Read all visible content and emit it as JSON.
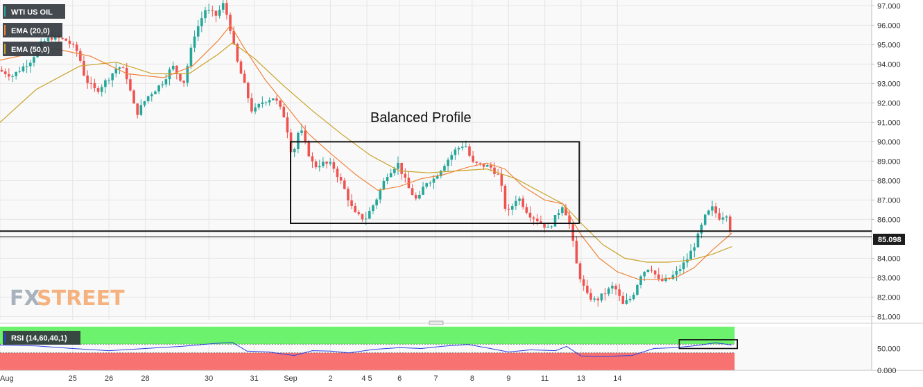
{
  "legend": {
    "instrument": "WTI US OIL",
    "ema20": "EMA (20,0)",
    "ema50": "EMA (50,0)",
    "rsi": "RSI (14,60,40,1)"
  },
  "colors": {
    "candle_up": "#26a69a",
    "candle_down": "#ef5350",
    "ema20": "#f0833a",
    "ema50": "#c9a227",
    "rsi_line": "#2b3fe0",
    "rsi_upper_zone": "#6cf26c",
    "rsi_lower_zone": "#f87272"
  },
  "watermark": {
    "left": "FX",
    "right": "STREET"
  },
  "annotation": {
    "text": "Balanced Profile"
  },
  "price_tag": "85.098",
  "chart_data": {
    "type": "candlestick",
    "y_axis": {
      "ylim": [
        80.8,
        97.3
      ],
      "ticks": [
        "81.000",
        "82.000",
        "83.000",
        "84.000",
        "85.000",
        "86.000",
        "87.000",
        "88.000",
        "89.000",
        "90.000",
        "91.000",
        "92.000",
        "93.000",
        "94.000",
        "95.000",
        "96.000",
        "97.000"
      ]
    },
    "x_axis": {
      "range": [
        0,
        24
      ],
      "ticks": [
        {
          "label": "Aug",
          "pos": 0
        },
        {
          "label": "25",
          "pos": 2
        },
        {
          "label": "26",
          "pos": 3
        },
        {
          "label": "28",
          "pos": 4
        },
        {
          "label": "30",
          "pos": 5.75
        },
        {
          "label": "31",
          "pos": 7
        },
        {
          "label": "Sep",
          "pos": 8
        },
        {
          "label": "2",
          "pos": 9.1
        },
        {
          "label": "4 5",
          "pos": 10.1
        },
        {
          "label": "6",
          "pos": 11
        },
        {
          "label": "7",
          "pos": 12
        },
        {
          "label": "8",
          "pos": 13
        },
        {
          "label": "9",
          "pos": 14
        },
        {
          "label": "11",
          "pos": 15
        },
        {
          "label": "13",
          "pos": 16
        },
        {
          "label": "14",
          "pos": 17
        }
      ]
    },
    "price_path": [
      [
        0,
        93.7
      ],
      [
        0.4,
        93.4
      ],
      [
        0.9,
        94.2
      ],
      [
        1.2,
        95.1
      ],
      [
        1.5,
        95.4
      ],
      [
        1.9,
        95.2
      ],
      [
        2.2,
        94.6
      ],
      [
        2.4,
        93.2
      ],
      [
        2.7,
        92.6
      ],
      [
        3.0,
        93.2
      ],
      [
        3.3,
        93.9
      ],
      [
        3.5,
        93.6
      ],
      [
        3.8,
        91.4
      ],
      [
        4.1,
        92.3
      ],
      [
        4.5,
        93.0
      ],
      [
        4.8,
        93.9
      ],
      [
        5.1,
        93.0
      ],
      [
        5.4,
        95.5
      ],
      [
        5.7,
        96.8
      ],
      [
        6.0,
        96.5
      ],
      [
        6.2,
        97.1
      ],
      [
        6.35,
        96.2
      ],
      [
        6.55,
        94.3
      ],
      [
        6.8,
        92.8
      ],
      [
        7.0,
        91.5
      ],
      [
        7.3,
        92.1
      ],
      [
        7.6,
        92.3
      ],
      [
        7.9,
        91.2
      ],
      [
        8.1,
        89.2
      ],
      [
        8.3,
        90.8
      ],
      [
        8.5,
        89.6
      ],
      [
        8.7,
        88.7
      ],
      [
        8.9,
        88.9
      ],
      [
        9.2,
        88.8
      ],
      [
        9.5,
        87.7
      ],
      [
        9.8,
        86.3
      ],
      [
        10.1,
        86.0
      ],
      [
        10.4,
        87.0
      ],
      [
        10.7,
        88.3
      ],
      [
        11.0,
        88.9
      ],
      [
        11.3,
        87.6
      ],
      [
        11.55,
        86.9
      ],
      [
        11.75,
        87.9
      ],
      [
        12.0,
        88.1
      ],
      [
        12.3,
        88.9
      ],
      [
        12.6,
        89.6
      ],
      [
        12.85,
        89.9
      ],
      [
        13.05,
        88.9
      ],
      [
        13.3,
        88.8
      ],
      [
        13.55,
        88.7
      ],
      [
        13.8,
        88.2
      ],
      [
        14.0,
        86.2
      ],
      [
        14.3,
        87.2
      ],
      [
        14.6,
        86.3
      ],
      [
        14.9,
        85.9
      ],
      [
        15.15,
        85.5
      ],
      [
        15.4,
        86.3
      ],
      [
        15.55,
        86.8
      ],
      [
        15.75,
        85.6
      ],
      [
        15.95,
        83.4
      ],
      [
        16.2,
        82.1
      ],
      [
        16.45,
        81.8
      ],
      [
        16.7,
        82.2
      ],
      [
        16.95,
        82.6
      ],
      [
        17.2,
        81.6
      ],
      [
        17.45,
        82.0
      ],
      [
        17.7,
        83.2
      ],
      [
        17.95,
        83.6
      ],
      [
        18.2,
        82.8
      ],
      [
        18.45,
        82.9
      ],
      [
        18.7,
        83.3
      ],
      [
        18.95,
        83.9
      ],
      [
        19.2,
        84.8
      ],
      [
        19.45,
        86.1
      ],
      [
        19.65,
        86.6
      ],
      [
        19.85,
        86.1
      ],
      [
        20.05,
        86.3
      ],
      [
        20.15,
        85.5
      ]
    ],
    "ema20_path": [
      [
        0,
        94.2
      ],
      [
        1.5,
        94.8
      ],
      [
        2.5,
        94.4
      ],
      [
        3.5,
        93.5
      ],
      [
        4.5,
        93.3
      ],
      [
        5.3,
        93.9
      ],
      [
        6.0,
        95.2
      ],
      [
        6.35,
        96.0
      ],
      [
        6.7,
        94.9
      ],
      [
        7.3,
        93.2
      ],
      [
        7.9,
        91.8
      ],
      [
        8.5,
        90.4
      ],
      [
        9.1,
        89.4
      ],
      [
        9.8,
        88.3
      ],
      [
        10.4,
        87.5
      ],
      [
        11.0,
        87.7
      ],
      [
        11.6,
        88.1
      ],
      [
        12.2,
        88.3
      ],
      [
        12.9,
        88.7
      ],
      [
        13.4,
        88.9
      ],
      [
        13.9,
        88.6
      ],
      [
        14.4,
        87.7
      ],
      [
        15.0,
        87.0
      ],
      [
        15.5,
        86.8
      ],
      [
        16.0,
        85.2
      ],
      [
        16.5,
        84.0
      ],
      [
        17.0,
        83.3
      ],
      [
        17.6,
        82.9
      ],
      [
        18.1,
        82.9
      ],
      [
        18.6,
        83.0
      ],
      [
        19.1,
        83.5
      ],
      [
        19.6,
        84.4
      ],
      [
        20.15,
        85.3
      ]
    ],
    "ema50_path": [
      [
        0,
        91.0
      ],
      [
        1.0,
        92.7
      ],
      [
        2.2,
        93.9
      ],
      [
        3.2,
        94.1
      ],
      [
        4.2,
        93.5
      ],
      [
        5.2,
        93.5
      ],
      [
        6.0,
        94.5
      ],
      [
        6.4,
        95.1
      ],
      [
        7.0,
        94.3
      ],
      [
        7.8,
        92.9
      ],
      [
        8.6,
        91.6
      ],
      [
        9.4,
        90.4
      ],
      [
        10.2,
        89.3
      ],
      [
        11.0,
        88.5
      ],
      [
        11.8,
        88.4
      ],
      [
        12.6,
        88.5
      ],
      [
        13.4,
        88.6
      ],
      [
        14.2,
        88.1
      ],
      [
        15.0,
        87.3
      ],
      [
        15.5,
        86.8
      ],
      [
        16.0,
        85.8
      ],
      [
        16.6,
        84.7
      ],
      [
        17.2,
        84.0
      ],
      [
        17.8,
        83.8
      ],
      [
        18.4,
        83.8
      ],
      [
        19.0,
        83.9
      ],
      [
        19.6,
        84.2
      ],
      [
        20.15,
        84.6
      ]
    ],
    "rsi": {
      "ylim": [
        0,
        100
      ],
      "upper": 60,
      "lower": 40,
      "ticks": [
        "0.000",
        "50.000"
      ],
      "path": [
        [
          0,
          58
        ],
        [
          1,
          56
        ],
        [
          2,
          50
        ],
        [
          3,
          45
        ],
        [
          4,
          50
        ],
        [
          5,
          55
        ],
        [
          6,
          62
        ],
        [
          6.4,
          64
        ],
        [
          6.8,
          44
        ],
        [
          7.4,
          42
        ],
        [
          8.1,
          34
        ],
        [
          8.6,
          45
        ],
        [
          9.1,
          44
        ],
        [
          9.6,
          40
        ],
        [
          10.3,
          48
        ],
        [
          11,
          52
        ],
        [
          11.6,
          50
        ],
        [
          12.3,
          56
        ],
        [
          12.9,
          59
        ],
        [
          13.5,
          50
        ],
        [
          14.0,
          42
        ],
        [
          14.6,
          47
        ],
        [
          15.3,
          45
        ],
        [
          15.6,
          55
        ],
        [
          16.0,
          33
        ],
        [
          16.6,
          32
        ],
        [
          17.4,
          34
        ],
        [
          18.0,
          50
        ],
        [
          18.6,
          52
        ],
        [
          19.2,
          57
        ],
        [
          19.7,
          63
        ],
        [
          20.15,
          58
        ]
      ]
    },
    "levels": {
      "support_upper": 85.4,
      "support_lower": 85.1,
      "last": 85.098
    },
    "balanced_box": {
      "x0": 8.0,
      "x1": 15.95,
      "y_top": 90.0,
      "y_bottom": 85.8
    },
    "rsi_box": {
      "x0": 18.7,
      "x1": 20.3,
      "y_top": 70,
      "y_bottom": 50
    }
  }
}
